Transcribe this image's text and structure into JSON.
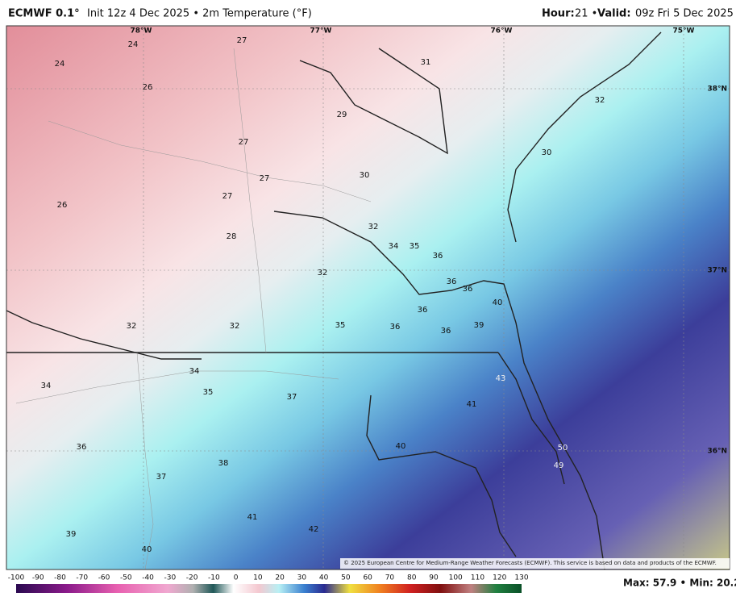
{
  "header": {
    "model": "ECMWF 0.1°",
    "description": "Init 12z 4 Dec 2025 • 2m Temperature (°F)",
    "hour_label": "Hour:",
    "hour": "21 •",
    "valid_label": "Valid:",
    "valid": "09z Fri 5 Dec 2025"
  },
  "longitudes": [
    "78°W",
    "77°W",
    "76°W",
    "75°W"
  ],
  "latitudes": [
    "38°N",
    "37°N",
    "36°N"
  ],
  "stations": [
    24,
    27,
    31,
    24,
    26,
    32,
    29,
    27,
    30,
    27,
    30,
    27,
    26,
    32,
    28,
    34,
    35,
    36,
    32,
    36,
    36,
    40,
    36,
    32,
    32,
    35,
    36,
    39,
    36,
    34,
    43,
    34,
    35,
    37,
    41,
    40,
    36,
    50,
    38,
    49,
    37,
    41,
    42,
    39,
    40
  ],
  "colorbar": [
    -100,
    -90,
    -80,
    -70,
    -60,
    -50,
    -40,
    -30,
    -20,
    -10,
    0,
    10,
    20,
    30,
    40,
    50,
    60,
    70,
    80,
    90,
    100,
    110,
    120,
    130
  ],
  "footer": {
    "copyright": "© 2025 European Centre for Medium-Range Weather Forecasts (ECMWF). This service is based on data and products of the ECMWF.",
    "max_min": "Max: 57.9 • Min: 20.2"
  }
}
